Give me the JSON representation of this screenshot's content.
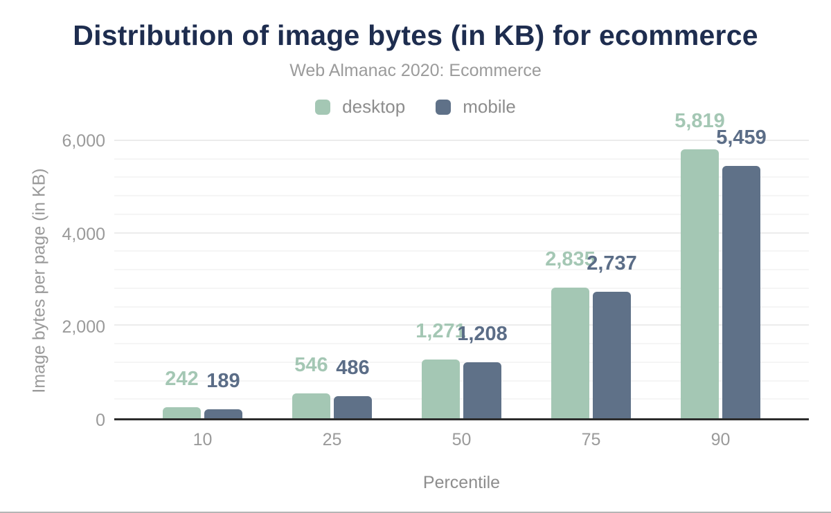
{
  "chart": {
    "title": "Distribution of image bytes (in KB) for ecommerce",
    "subtitle": "Web Almanac 2020: Ecommerce"
  },
  "chart_data": {
    "type": "bar",
    "title": "Distribution of image bytes (in KB) for ecommerce",
    "subtitle": "Web Almanac 2020: Ecommerce",
    "categories": [
      "10",
      "25",
      "50",
      "75",
      "90"
    ],
    "series": [
      {
        "name": "desktop",
        "color": "#a4c7b4",
        "label_color": "#a4c7b4",
        "values": [
          242,
          546,
          1271,
          2835,
          5819
        ]
      },
      {
        "name": "mobile",
        "color": "#5f7188",
        "label_color": "#5b6d87",
        "values": [
          189,
          486,
          1208,
          2737,
          5459
        ]
      }
    ],
    "xlabel": "Percentile",
    "ylabel": "Image bytes per page (in KB)",
    "ylim": [
      0,
      6000
    ],
    "yticks": [
      0,
      2000,
      4000,
      6000
    ],
    "minor_grid_step": 400,
    "grid": true,
    "legend_position": "top",
    "data_labels": true
  }
}
